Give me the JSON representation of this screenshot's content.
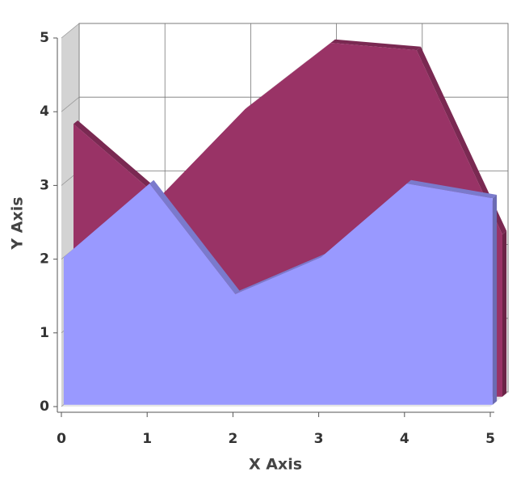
{
  "chart_data": {
    "type": "area3d",
    "x_label": "X Axis",
    "y_label": "Y Axis",
    "x": [
      0,
      1,
      2,
      3,
      4,
      5
    ],
    "series": [
      {
        "color": "#993366",
        "values": [
          3.7,
          2.7,
          3.9,
          4.8,
          4.7,
          2.2
        ]
      },
      {
        "color": "#9999ff",
        "values": [
          2.0,
          3.0,
          1.5,
          2.0,
          3.0,
          2.8
        ]
      }
    ],
    "xlim": [
      0,
      5
    ],
    "ylim": [
      0,
      5
    ],
    "xticks": [
      0,
      1,
      2,
      3,
      4,
      5
    ],
    "yticks": [
      0,
      1,
      2,
      3,
      4,
      5
    ],
    "grid": true
  }
}
